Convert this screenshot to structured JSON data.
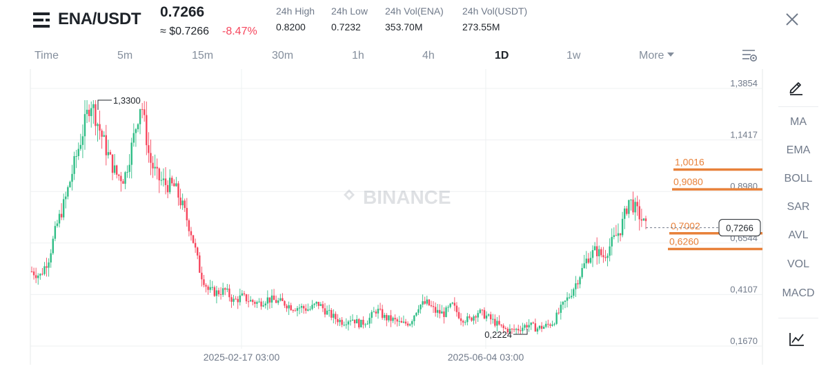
{
  "header": {
    "pair": "ENA/USDT",
    "price": "0.7266",
    "approx_price": "≈ $0.7266",
    "change": "-8.47%",
    "stats": [
      {
        "label": "24h High",
        "value": "0.8200"
      },
      {
        "label": "24h Low",
        "value": "0.7232"
      },
      {
        "label": "24h Vol(ENA)",
        "value": "353.70M"
      },
      {
        "label": "24h Vol(USDT)",
        "value": "273.55M"
      }
    ]
  },
  "intervals": [
    "Time",
    "5m",
    "15m",
    "30m",
    "1h",
    "4h",
    "1D",
    "1w"
  ],
  "active_interval": "1D",
  "more_label": "More",
  "indicators": [
    "MA",
    "EMA",
    "BOLL",
    "SAR",
    "AVL",
    "VOL",
    "MACD"
  ],
  "watermark": "BINANCE",
  "colors": {
    "up": "#2ebd85",
    "down": "#f6465d",
    "level_line": "#e8813a",
    "grid": "#eef0f2",
    "axis_text": "#707a8a"
  },
  "chart_data": {
    "type": "candlestick",
    "y_ticks": [
      "1,3854",
      "1,1417",
      "0,8980",
      "0,6544",
      "0,4107",
      "0,1670"
    ],
    "x_ticks": [
      "2025-02-17 03:00",
      "2025-06-04 03:00"
    ],
    "ylim": [
      0.167,
      1.3854
    ],
    "high_marker": "1,3300",
    "low_marker": "0,2224",
    "last_price_label": "0,7266",
    "last_price": 0.7266,
    "levels": [
      {
        "label": "1,0016",
        "value": 1.0016
      },
      {
        "label": "0,9080",
        "value": 0.908
      },
      {
        "label": "0,7002",
        "value": 0.7002
      },
      {
        "label": "0,6260",
        "value": 0.626
      }
    ],
    "close_path": [
      0.52,
      0.5,
      0.58,
      0.74,
      0.86,
      1.02,
      1.17,
      1.33,
      1.2,
      1.08,
      0.98,
      0.96,
      1.13,
      1.33,
      1.05,
      0.96,
      0.93,
      0.92,
      0.82,
      0.7,
      0.52,
      0.43,
      0.42,
      0.43,
      0.38,
      0.4,
      0.38,
      0.37,
      0.39,
      0.38,
      0.37,
      0.35,
      0.35,
      0.34,
      0.37,
      0.33,
      0.3,
      0.28,
      0.3,
      0.27,
      0.29,
      0.34,
      0.3,
      0.29,
      0.27,
      0.28,
      0.36,
      0.37,
      0.33,
      0.32,
      0.36,
      0.3,
      0.29,
      0.33,
      0.31,
      0.28,
      0.25,
      0.24,
      0.25,
      0.27,
      0.25,
      0.26,
      0.28,
      0.35,
      0.41,
      0.49,
      0.58,
      0.62,
      0.59,
      0.66,
      0.72,
      0.86,
      0.8,
      0.73
    ]
  }
}
